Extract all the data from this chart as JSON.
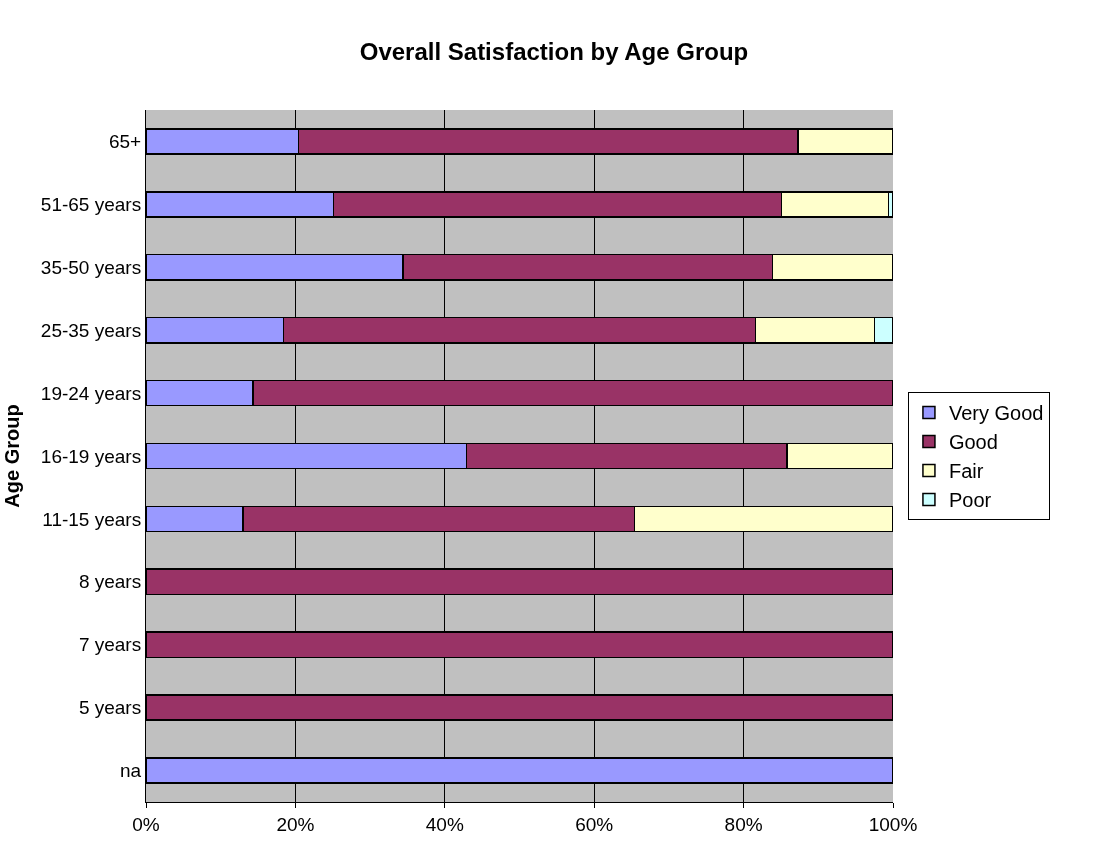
{
  "chart_data": {
    "type": "bar",
    "title": "Overall Satisfaction by Age Group",
    "ylabel": "Age Group",
    "orientation": "horizontal",
    "stacked": true,
    "categories": [
      "65+",
      "51-65 years",
      "35-50 years",
      "25-35 years",
      "19-24 years",
      "16-19 years",
      "11-15 years",
      "8 years",
      "7 years",
      "5 years",
      "na"
    ],
    "series": [
      {
        "name": "Very Good",
        "color": "#9999ff",
        "values": [
          20.4,
          25.1,
          34.4,
          18.4,
          14.3,
          42.9,
          13.0,
          null,
          null,
          null,
          100
        ]
      },
      {
        "name": "Good",
        "color": "#993366",
        "values": [
          66.9,
          60.0,
          49.5,
          63.2,
          85.7,
          42.9,
          52.4,
          100,
          100,
          100,
          null
        ]
      },
      {
        "name": "Fair",
        "color": "#ffffcc",
        "values": [
          12.7,
          14.3,
          16.1,
          15.9,
          null,
          14.2,
          34.6,
          null,
          null,
          null,
          null
        ]
      },
      {
        "name": "Poor",
        "color": "#ccffff",
        "values": [
          null,
          0.6,
          null,
          2.5,
          null,
          null,
          null,
          null,
          null,
          null,
          null
        ]
      }
    ],
    "xlim": [
      0,
      100
    ],
    "xticks": [
      {
        "value": 0,
        "label": "0%"
      },
      {
        "value": 20,
        "label": "20%"
      },
      {
        "value": 40,
        "label": "40%"
      },
      {
        "value": 60,
        "label": "60%"
      },
      {
        "value": 80,
        "label": "80%"
      },
      {
        "value": 100,
        "label": "100%"
      }
    ],
    "grid": "x",
    "legend": "right"
  }
}
